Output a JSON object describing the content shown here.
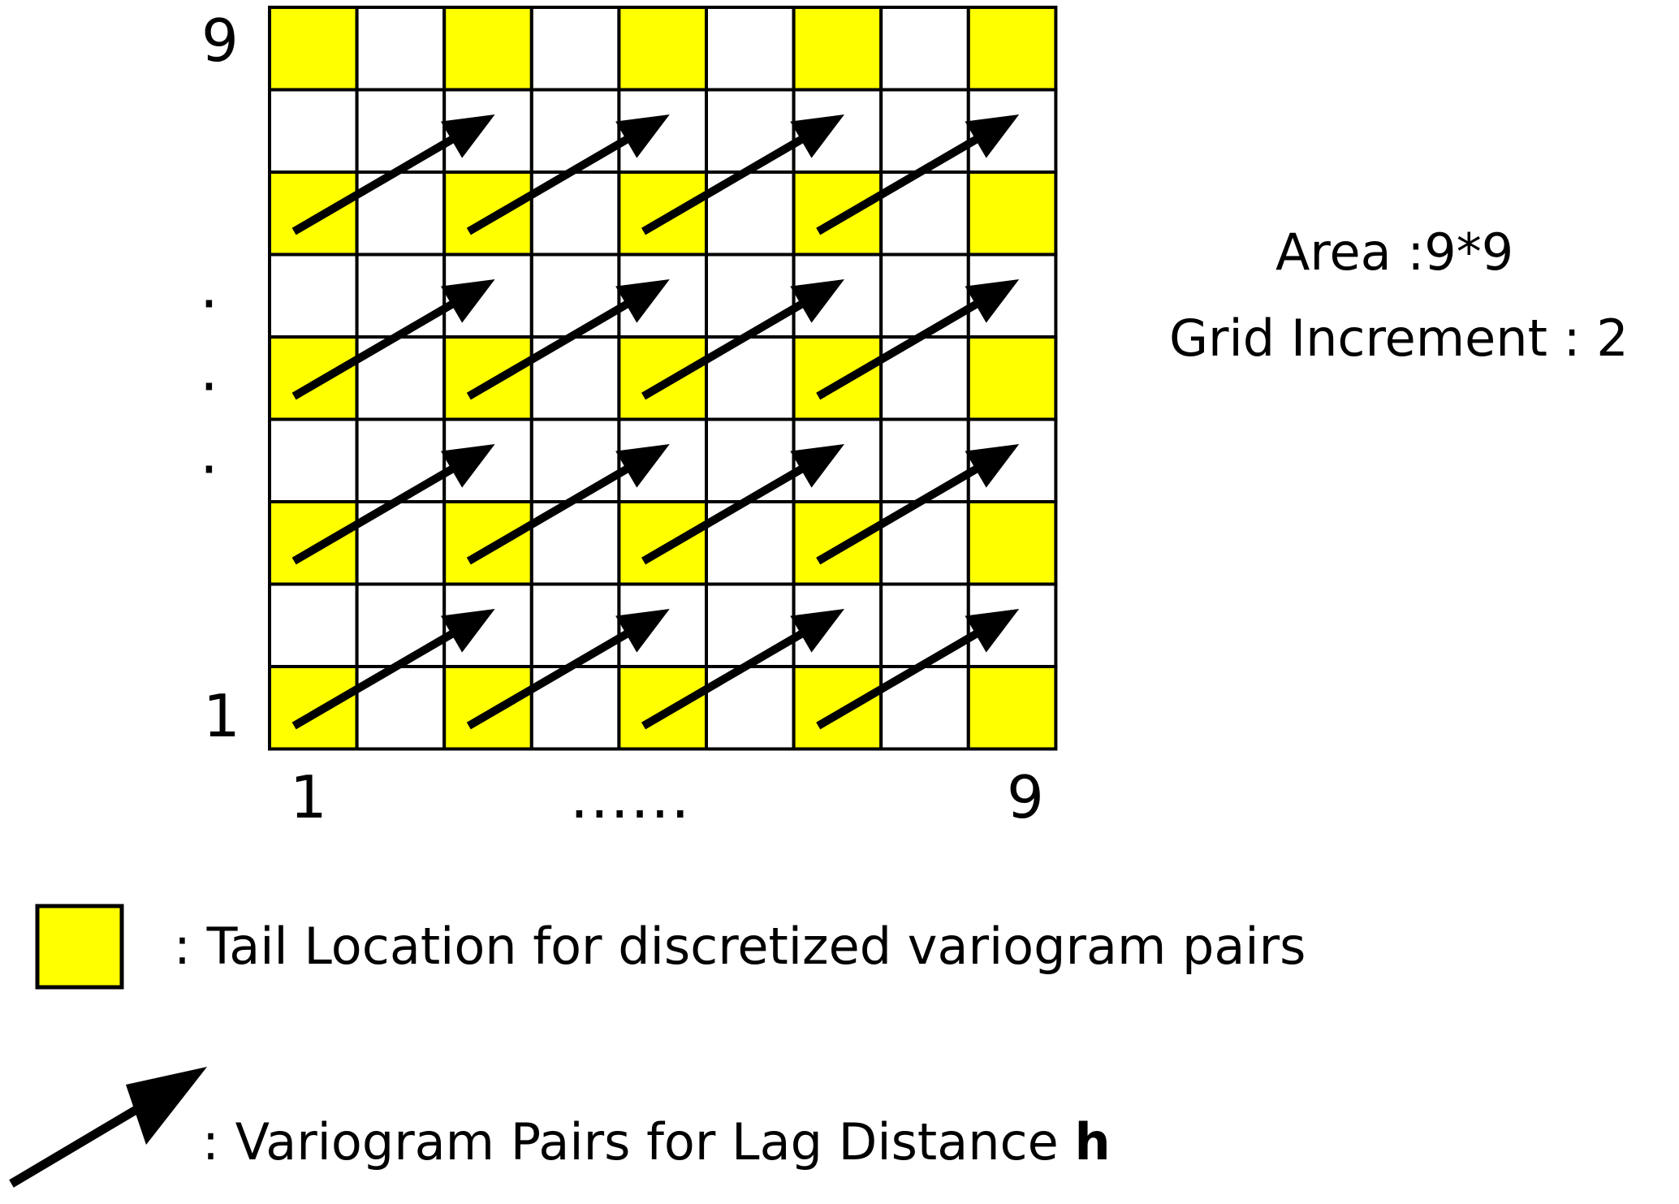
{
  "grid": {
    "rows": 9,
    "cols": 9,
    "tail_color": "#ffff00",
    "empty_color": "#ffffff",
    "line_color": "#000000",
    "tail_rows_from_bottom": [
      1,
      3,
      5,
      7,
      9
    ],
    "tail_cols": [
      1,
      3,
      5,
      7,
      9
    ],
    "pair_lag_cells": {
      "dx": 2,
      "dy": 1
    }
  },
  "axes": {
    "y_top": "9",
    "y_bottom": "1",
    "y_dots": [
      "·",
      "·",
      "·"
    ],
    "x_left": "1",
    "x_right": "9",
    "x_dots": "......"
  },
  "info": {
    "area": "Area :9*9",
    "grid_increment": "Grid Increment : 2"
  },
  "legend": {
    "tail_text": ": Tail Location for discretized variogram pairs",
    "pairs_text": ": Variogram Pairs for Lag Distance ",
    "pairs_symbol": "h"
  }
}
